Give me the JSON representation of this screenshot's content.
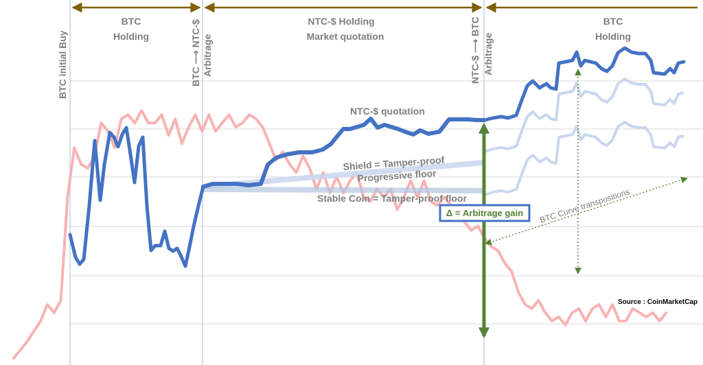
{
  "colors": {
    "btc_pink": "#f7b3b3",
    "ntc_blue": "#4472c4",
    "ntc_faded": "#c9d6ef",
    "floor_grey": "#b4c4df",
    "phase_brown": "#7f6000",
    "arbitrage_green": "#548235",
    "label_grey": "#7f7f7f",
    "grid": "#d9d9d9",
    "separator": "#b4c7e7"
  },
  "phases": [
    {
      "line1": "BTC",
      "line2": "Holding"
    },
    {
      "line1": "NTC-$ Holding",
      "line2": "Market quotation"
    },
    {
      "line1": "BTC",
      "line2": "Holding"
    }
  ],
  "vertical_labels": {
    "initial_buy": "BTC initial Buy",
    "to_ntc": "BTC ⟶ NTC-$",
    "arbitrage_1": "Arbitrage",
    "to_btc": "NTC-$ ⟶ BTC",
    "arbitrage_2": "Arbitrage"
  },
  "annotations": {
    "ntc_quotation": "NTC-$ quotation",
    "shield": "Shield = Tamper-proof",
    "progressive": "Progressive floor",
    "stable": "Stable Coin = Tamper-proof floor",
    "arbitrage_gain": "Δ = Arbitrage gain",
    "transpositions": "BTC Curve transpositions",
    "source": "Source : CoinMarketCap"
  },
  "chart_data": {
    "type": "line",
    "x_range": [
      0,
      100
    ],
    "y_range": [
      0,
      100
    ],
    "grid": true,
    "series": [
      {
        "values_x": [
          0,
          2,
          4,
          5,
          6,
          7,
          8,
          9,
          10,
          11,
          12,
          13,
          14,
          15,
          16,
          17,
          18,
          19,
          20,
          21,
          22,
          23,
          24,
          25,
          26,
          27,
          28,
          29,
          30,
          31,
          32,
          33,
          34,
          35,
          36,
          37,
          38,
          39,
          40,
          41,
          42,
          43,
          44,
          45,
          46,
          47,
          48,
          49,
          50,
          51,
          52,
          53,
          54,
          55,
          56,
          57,
          58,
          59,
          60,
          61,
          62,
          63,
          64,
          65,
          66,
          67,
          68,
          69,
          70,
          71,
          72,
          73,
          74,
          75,
          76,
          77,
          78,
          79,
          80,
          81,
          82,
          83,
          84,
          85,
          86,
          87,
          88,
          89,
          90,
          91,
          92,
          93,
          94,
          95,
          96,
          97
        ],
        "values_y": [
          1,
          5,
          10,
          14,
          12,
          15,
          40,
          52,
          48,
          47,
          50,
          58,
          56,
          52,
          59,
          60,
          58,
          61,
          58,
          58,
          60,
          55,
          59,
          53,
          57,
          60,
          56,
          60,
          56,
          58,
          60,
          57,
          58,
          60,
          59,
          57,
          53,
          49,
          51,
          48,
          46,
          50,
          47,
          42,
          46,
          41,
          45,
          41,
          44,
          46,
          40,
          39,
          42,
          40,
          42,
          37,
          40,
          44,
          40,
          44,
          39,
          38,
          40,
          38,
          36,
          34,
          32,
          33,
          30,
          28,
          27,
          24,
          22,
          17,
          14,
          13,
          15,
          12,
          10,
          11,
          9,
          12,
          13,
          10,
          13,
          14,
          11,
          14,
          10,
          10,
          13,
          12,
          11,
          12,
          10,
          12
        ]
      }
    ]
  }
}
